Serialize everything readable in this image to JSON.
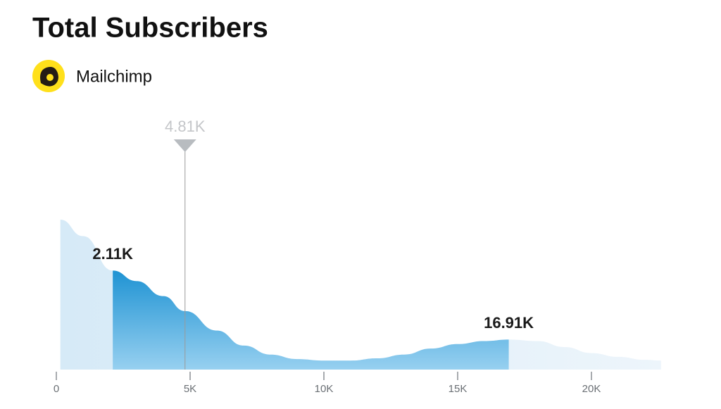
{
  "chart_data": {
    "type": "density",
    "title": "Total Subscribers",
    "subtitle": "Mailchimp",
    "x": [
      150,
      1000,
      2110,
      3000,
      4000,
      4810,
      6000,
      7000,
      8000,
      9000,
      10000,
      11000,
      12000,
      13000,
      14000,
      15000,
      16000,
      16910,
      18000,
      19000,
      20000,
      21000,
      22000,
      22600
    ],
    "values": [
      1.0,
      0.89,
      0.66,
      0.59,
      0.49,
      0.39,
      0.26,
      0.16,
      0.1,
      0.07,
      0.06,
      0.06,
      0.075,
      0.1,
      0.14,
      0.17,
      0.19,
      0.2,
      0.19,
      0.15,
      0.11,
      0.085,
      0.065,
      0.06
    ],
    "xlim": [
      0,
      22600
    ],
    "ylim": [
      0,
      1
    ],
    "xticks": [
      0,
      {
        "value": 5000,
        "label": "5K"
      },
      {
        "value": 10000,
        "label": "10K"
      },
      {
        "value": 15000,
        "label": "15K"
      },
      {
        "value": 20000,
        "label": "20K"
      }
    ],
    "range": [
      {
        "value": 2110,
        "label": "2.11K"
      },
      {
        "value": 16910,
        "label": "16.91K"
      }
    ],
    "marker": {
      "value": 4810,
      "label": "4.81K"
    },
    "color": "#1f93d3"
  }
}
